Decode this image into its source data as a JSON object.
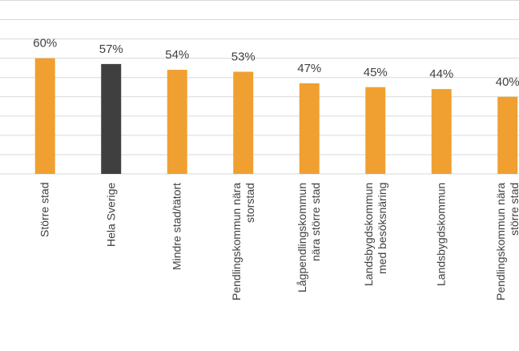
{
  "chart_data": {
    "type": "bar",
    "categories": [
      "Större stad",
      "Hela Sverige",
      "Mindre stad/tätort",
      "Pendlingskommun nära\nstorstad",
      "Lågpendlingskommun\nnära större stad",
      "Landsbygdskommun\nmed besöksnäring",
      "Landsbygdskommun",
      "Pendlingskommun nära\nstörre stad"
    ],
    "values": [
      60,
      57,
      54,
      53,
      47,
      45,
      44,
      40
    ],
    "value_labels": [
      "60%",
      "57%",
      "54%",
      "53%",
      "47%",
      "45%",
      "44%",
      "40%"
    ],
    "colors": [
      "#f0a030",
      "#3f3f3f",
      "#f0a030",
      "#f0a030",
      "#f0a030",
      "#f0a030",
      "#f0a030",
      "#f0a030"
    ],
    "ylim": [
      0,
      90
    ],
    "yticks": [
      0,
      10,
      20,
      30,
      40,
      50,
      60,
      70,
      80,
      90
    ],
    "grid": true
  }
}
